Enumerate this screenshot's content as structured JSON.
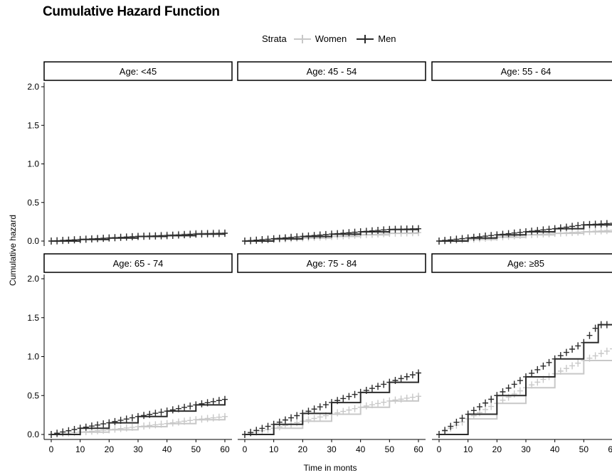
{
  "chart_data": {
    "type": "line",
    "title": "Cumulative Hazard Function",
    "xlabel": "Time in monts",
    "ylabel": "Cumulative hazard",
    "xlim": [
      0,
      60
    ],
    "ylim": [
      0,
      2
    ],
    "x_ticks": [
      0,
      10,
      20,
      30,
      40,
      50,
      60
    ],
    "x_tick_labels": [
      "0",
      "10",
      "20",
      "30",
      "40",
      "50",
      "60"
    ],
    "y_ticks": [
      0,
      0.5,
      1,
      1.5,
      2
    ],
    "y_tick_labels": [
      "0.0",
      "0.5",
      "1.0",
      "1.5",
      "2.0"
    ],
    "grid": false,
    "legend": {
      "title": "Strata",
      "placement": "top",
      "entries": [
        {
          "name": "Women",
          "color": "#c8c8c8"
        },
        {
          "name": "Men",
          "color": "#2b2b2b"
        }
      ]
    },
    "panels": [
      {
        "label": "Age: <45",
        "series": [
          {
            "name": "Women",
            "x": [
              0,
              10,
              20,
              30,
              40,
              50,
              60
            ],
            "values": [
              0,
              0.02,
              0.04,
              0.06,
              0.08,
              0.1,
              0.11
            ]
          },
          {
            "name": "Men",
            "x": [
              0,
              10,
              20,
              30,
              40,
              50,
              60
            ],
            "values": [
              0,
              0.02,
              0.04,
              0.06,
              0.07,
              0.09,
              0.1
            ]
          }
        ]
      },
      {
        "label": "Age: 45 - 54",
        "series": [
          {
            "name": "Women",
            "x": [
              0,
              10,
              20,
              30,
              40,
              50,
              60
            ],
            "values": [
              0,
              0.02,
              0.04,
              0.06,
              0.08,
              0.1,
              0.11
            ]
          },
          {
            "name": "Men",
            "x": [
              0,
              10,
              20,
              30,
              40,
              50,
              60
            ],
            "values": [
              0,
              0.03,
              0.06,
              0.09,
              0.12,
              0.15,
              0.16
            ]
          }
        ]
      },
      {
        "label": "Age: 55 - 64",
        "series": [
          {
            "name": "Women",
            "x": [
              0,
              10,
              20,
              30,
              40,
              50,
              60
            ],
            "values": [
              0,
              0.02,
              0.05,
              0.08,
              0.1,
              0.12,
              0.14
            ]
          },
          {
            "name": "Men",
            "x": [
              0,
              10,
              20,
              30,
              40,
              50,
              60
            ],
            "values": [
              0,
              0.04,
              0.08,
              0.12,
              0.16,
              0.21,
              0.23
            ]
          }
        ]
      },
      {
        "label": "Age: 65 - 74",
        "series": [
          {
            "name": "Women",
            "x": [
              0,
              10,
              20,
              30,
              40,
              50,
              60
            ],
            "values": [
              0,
              0.03,
              0.06,
              0.1,
              0.14,
              0.19,
              0.23
            ]
          },
          {
            "name": "Men",
            "x": [
              0,
              10,
              20,
              30,
              40,
              50,
              60
            ],
            "values": [
              0,
              0.08,
              0.15,
              0.23,
              0.3,
              0.38,
              0.45
            ]
          }
        ]
      },
      {
        "label": "Age: 75 - 84",
        "series": [
          {
            "name": "Women",
            "x": [
              0,
              10,
              20,
              30,
              40,
              50,
              60
            ],
            "values": [
              0,
              0.08,
              0.17,
              0.26,
              0.35,
              0.43,
              0.49
            ]
          },
          {
            "name": "Men",
            "x": [
              0,
              10,
              20,
              30,
              40,
              50,
              60
            ],
            "values": [
              0,
              0.13,
              0.27,
              0.41,
              0.54,
              0.67,
              0.79
            ]
          }
        ]
      },
      {
        "label": "Age: ≥85",
        "series": [
          {
            "name": "Women",
            "x": [
              0,
              10,
              20,
              30,
              40,
              50,
              60
            ],
            "values": [
              0,
              0.2,
              0.4,
              0.6,
              0.78,
              0.95,
              1.1
            ]
          },
          {
            "name": "Men",
            "x": [
              0,
              10,
              20,
              30,
              40,
              50,
              55,
              60
            ],
            "values": [
              0,
              0.26,
              0.5,
              0.74,
              0.97,
              1.18,
              1.41,
              1.41
            ]
          }
        ]
      }
    ]
  }
}
